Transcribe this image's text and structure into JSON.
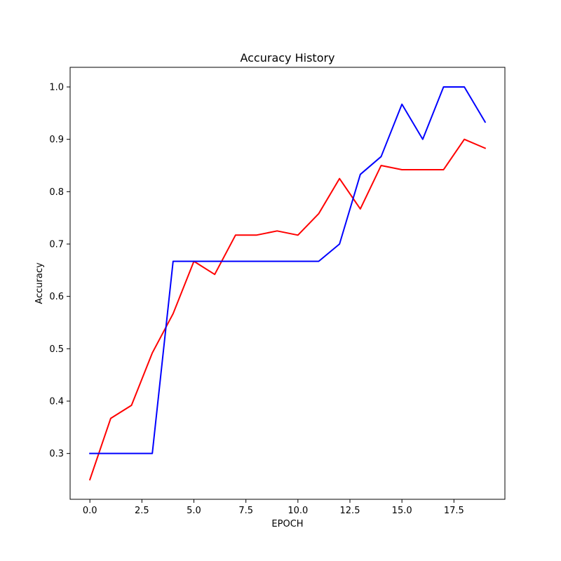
{
  "chart_data": {
    "type": "line",
    "title": "Accuracy History",
    "xlabel": "EPOCH",
    "ylabel": "Accuracy",
    "xlim": [
      -0.95,
      19.95
    ],
    "ylim": [
      0.2125,
      1.0375
    ],
    "xticks": [
      0.0,
      2.5,
      5.0,
      7.5,
      10.0,
      12.5,
      15.0,
      17.5
    ],
    "xtick_labels": [
      "0.0",
      "2.5",
      "5.0",
      "7.5",
      "10.0",
      "12.5",
      "15.0",
      "17.5"
    ],
    "yticks": [
      0.3,
      0.4,
      0.5,
      0.6,
      0.7,
      0.8,
      0.9,
      1.0
    ],
    "ytick_labels": [
      "0.3",
      "0.4",
      "0.5",
      "0.6",
      "0.7",
      "0.8",
      "0.9",
      "1.0"
    ],
    "grid": false,
    "x": [
      0,
      1,
      2,
      3,
      4,
      5,
      6,
      7,
      8,
      9,
      10,
      11,
      12,
      13,
      14,
      15,
      16,
      17,
      18,
      19
    ],
    "series": [
      {
        "color": "#ff0000",
        "values": [
          0.25,
          0.367,
          0.392,
          0.492,
          0.567,
          0.667,
          0.642,
          0.717,
          0.717,
          0.725,
          0.717,
          0.758,
          0.825,
          0.767,
          0.85,
          0.842,
          0.842,
          0.842,
          0.9,
          0.883
        ]
      },
      {
        "color": "#0000ff",
        "values": [
          0.3,
          0.3,
          0.3,
          0.3,
          0.667,
          0.667,
          0.667,
          0.667,
          0.667,
          0.667,
          0.667,
          0.667,
          0.7,
          0.833,
          0.867,
          0.967,
          0.9,
          1.0,
          1.0,
          0.933
        ]
      }
    ]
  }
}
